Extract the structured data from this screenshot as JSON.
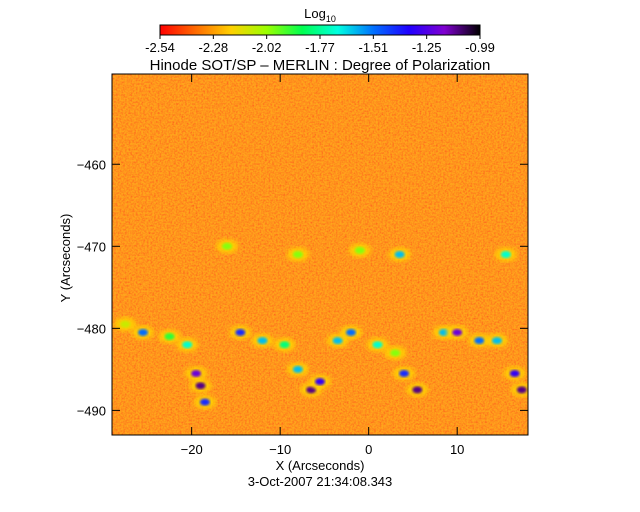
{
  "chart_data": {
    "type": "heatmap",
    "title": "Hinode SOT/SP – MERLIN : Degree of Polarization",
    "xlabel": "X (Arcseconds)",
    "ylabel": "Y (Arcseconds)",
    "timestamp": "3-Oct-2007 21:34:08.343",
    "xlim": [
      -29,
      18
    ],
    "ylim": [
      -493,
      -449
    ],
    "x_ticks": [
      -20,
      -10,
      0,
      10
    ],
    "y_ticks": [
      -490,
      -480,
      -470,
      -460
    ],
    "colorbar": {
      "label_base": "Log",
      "label_sub": "10",
      "range": [
        -2.54,
        -0.99
      ],
      "ticks": [
        "-2.54",
        "-2.28",
        "-2.02",
        "-1.77",
        "-1.51",
        "-1.25",
        "-0.99"
      ],
      "colors": [
        "#ff0000",
        "#ff6a00",
        "#ffd000",
        "#9bff00",
        "#00ff50",
        "#00ffe0",
        "#0070ff",
        "#2000ff",
        "#8000d0",
        "#000000"
      ]
    },
    "background_color": "#ff3a10",
    "features": [
      {
        "x": -27.5,
        "y": -479.5,
        "value": -2.1
      },
      {
        "x": -25.5,
        "y": -480.5,
        "value": -1.5
      },
      {
        "x": -22.5,
        "y": -481.0,
        "value": -1.9
      },
      {
        "x": -20.5,
        "y": -482.0,
        "value": -1.7
      },
      {
        "x": -19.5,
        "y": -485.5,
        "value": -1.2
      },
      {
        "x": -19.0,
        "y": -487.0,
        "value": -1.1
      },
      {
        "x": -18.5,
        "y": -489.0,
        "value": -1.4
      },
      {
        "x": -14.5,
        "y": -480.5,
        "value": -1.4
      },
      {
        "x": -12.0,
        "y": -481.5,
        "value": -1.6
      },
      {
        "x": -9.5,
        "y": -482.0,
        "value": -1.8
      },
      {
        "x": -8.0,
        "y": -485.0,
        "value": -1.6
      },
      {
        "x": -6.5,
        "y": -487.5,
        "value": -1.1
      },
      {
        "x": -5.5,
        "y": -486.5,
        "value": -1.3
      },
      {
        "x": -3.5,
        "y": -481.5,
        "value": -1.6
      },
      {
        "x": -2.0,
        "y": -480.5,
        "value": -1.5
      },
      {
        "x": 1.0,
        "y": -482.0,
        "value": -1.7
      },
      {
        "x": 3.5,
        "y": -471.0,
        "value": -1.6
      },
      {
        "x": 3.0,
        "y": -483.0,
        "value": -2.0
      },
      {
        "x": 4.0,
        "y": -485.5,
        "value": -1.4
      },
      {
        "x": 5.5,
        "y": -487.5,
        "value": -1.1
      },
      {
        "x": 8.5,
        "y": -480.5,
        "value": -1.6
      },
      {
        "x": 10.0,
        "y": -480.5,
        "value": -1.2
      },
      {
        "x": 12.5,
        "y": -481.5,
        "value": -1.5
      },
      {
        "x": 14.5,
        "y": -481.5,
        "value": -1.6
      },
      {
        "x": 15.5,
        "y": -471.0,
        "value": -1.7
      },
      {
        "x": 16.5,
        "y": -485.5,
        "value": -1.3
      },
      {
        "x": 17.3,
        "y": -487.5,
        "value": -1.1
      },
      {
        "x": -16.0,
        "y": -470.0,
        "value": -2.0
      },
      {
        "x": -8.0,
        "y": -471.0,
        "value": -2.0
      },
      {
        "x": -1.0,
        "y": -470.5,
        "value": -2.0
      }
    ]
  }
}
